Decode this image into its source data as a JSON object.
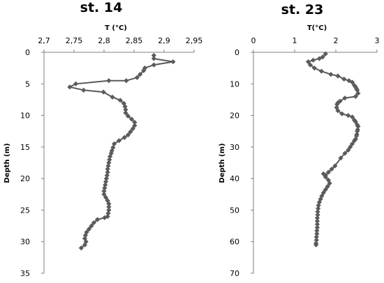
{
  "chart_data": [
    {
      "type": "scatter",
      "title": "st. 14",
      "xlabel": "T (°C)",
      "ylabel": "Depth (m)",
      "xlim": [
        2.7,
        2.95
      ],
      "ylim": [
        0,
        35
      ],
      "y_inverted": true,
      "x_axis_position": "top",
      "grid": false,
      "x_ticks": [
        "2,7",
        "2,75",
        "2,8",
        "2,85",
        "2,9",
        "2,95"
      ],
      "y_ticks": [
        "0",
        "5",
        "10",
        "15",
        "20",
        "25",
        "30",
        "35"
      ],
      "series": [
        {
          "x": [
            2.883,
            2.883,
            2.915,
            2.883,
            2.868,
            2.866,
            2.86,
            2.855,
            2.837,
            2.808,
            2.753,
            2.743,
            2.766,
            2.799,
            2.814,
            2.827,
            2.833,
            2.835,
            2.836,
            2.836,
            2.84,
            2.846,
            2.851,
            2.851,
            2.848,
            2.844,
            2.84,
            2.834,
            2.825,
            2.817,
            2.815,
            2.813,
            2.812,
            2.81,
            2.809,
            2.808,
            2.807,
            2.806,
            2.806,
            2.805,
            2.804,
            2.803,
            2.802,
            2.801,
            2.8,
            2.8,
            2.803,
            2.806,
            2.808,
            2.808,
            2.808,
            2.807,
            2.806,
            2.801,
            2.789,
            2.783,
            2.779,
            2.775,
            2.771,
            2.769,
            2.768,
            2.77,
            2.768,
            2.762
          ],
          "y": [
            0.5,
            1.0,
            1.5,
            2.0,
            2.5,
            2.9,
            3.5,
            4.0,
            4.5,
            4.5,
            5.0,
            5.5,
            6.0,
            6.3,
            7.1,
            7.6,
            8.1,
            8.6,
            9.1,
            9.6,
            10.1,
            10.6,
            11.1,
            11.6,
            12.1,
            12.6,
            13.1,
            13.5,
            14.0,
            14.5,
            15.1,
            15.6,
            16.0,
            16.5,
            17.0,
            17.5,
            18.0,
            18.5,
            19.0,
            19.5,
            20.0,
            20.5,
            21.0,
            21.5,
            22.0,
            22.5,
            23.0,
            23.5,
            24.0,
            24.5,
            25.0,
            25.5,
            26.0,
            26.2,
            26.5,
            27.0,
            27.5,
            28.0,
            28.5,
            29.0,
            29.5,
            30.0,
            30.5,
            31.0
          ]
        }
      ]
    },
    {
      "type": "scatter",
      "title": "st. 23",
      "xlabel": "T(°C)",
      "ylabel": "Depth (m)",
      "xlim": [
        0,
        3
      ],
      "ylim": [
        0,
        70
      ],
      "y_inverted": true,
      "x_axis_position": "top",
      "grid": false,
      "x_ticks": [
        "0",
        "1",
        "2",
        "3"
      ],
      "y_ticks": [
        "0",
        "10",
        "20",
        "30",
        "40",
        "50",
        "60",
        "70"
      ],
      "series": [
        {
          "x": [
            1.75,
            1.68,
            1.6,
            1.45,
            1.33,
            1.38,
            1.48,
            1.65,
            1.88,
            2.05,
            2.2,
            2.32,
            2.4,
            2.45,
            2.48,
            2.5,
            2.52,
            2.54,
            2.48,
            2.22,
            2.1,
            2.05,
            2.03,
            2.02,
            2.05,
            2.15,
            2.3,
            2.4,
            2.45,
            2.48,
            2.52,
            2.54,
            2.53,
            2.52,
            2.51,
            2.5,
            2.48,
            2.45,
            2.4,
            2.35,
            2.3,
            2.22,
            2.12,
            1.98,
            1.9,
            1.82,
            1.75,
            1.7,
            1.75,
            1.82,
            1.85,
            1.8,
            1.75,
            1.7,
            1.66,
            1.63,
            1.6,
            1.58,
            1.57,
            1.56,
            1.56,
            1.55,
            1.55,
            1.55,
            1.55,
            1.54,
            1.54,
            1.53,
            1.53,
            1.52,
            1.52
          ],
          "y": [
            0.5,
            1.5,
            2.0,
            2.5,
            3.0,
            4.0,
            5.0,
            6.0,
            7.0,
            7.5,
            8.5,
            9.0,
            9.5,
            10.5,
            11.0,
            11.5,
            12.0,
            13.0,
            14.0,
            14.5,
            15.5,
            16.0,
            16.5,
            17.5,
            18.5,
            19.5,
            20.0,
            20.5,
            21.5,
            22.0,
            23.0,
            23.5,
            24.5,
            25.0,
            26.0,
            26.5,
            27.5,
            28.0,
            29.0,
            30.0,
            31.0,
            32.0,
            33.5,
            36.0,
            37.0,
            38.0,
            39.0,
            38.5,
            39.5,
            40.5,
            41.5,
            42.5,
            43.5,
            44.5,
            45.5,
            46.5,
            47.5,
            48.5,
            49.5,
            50.5,
            51.5,
            52.5,
            53.5,
            54.5,
            55.5,
            56.5,
            57.5,
            58.5,
            59.5,
            60.5,
            61.0
          ]
        }
      ]
    }
  ]
}
